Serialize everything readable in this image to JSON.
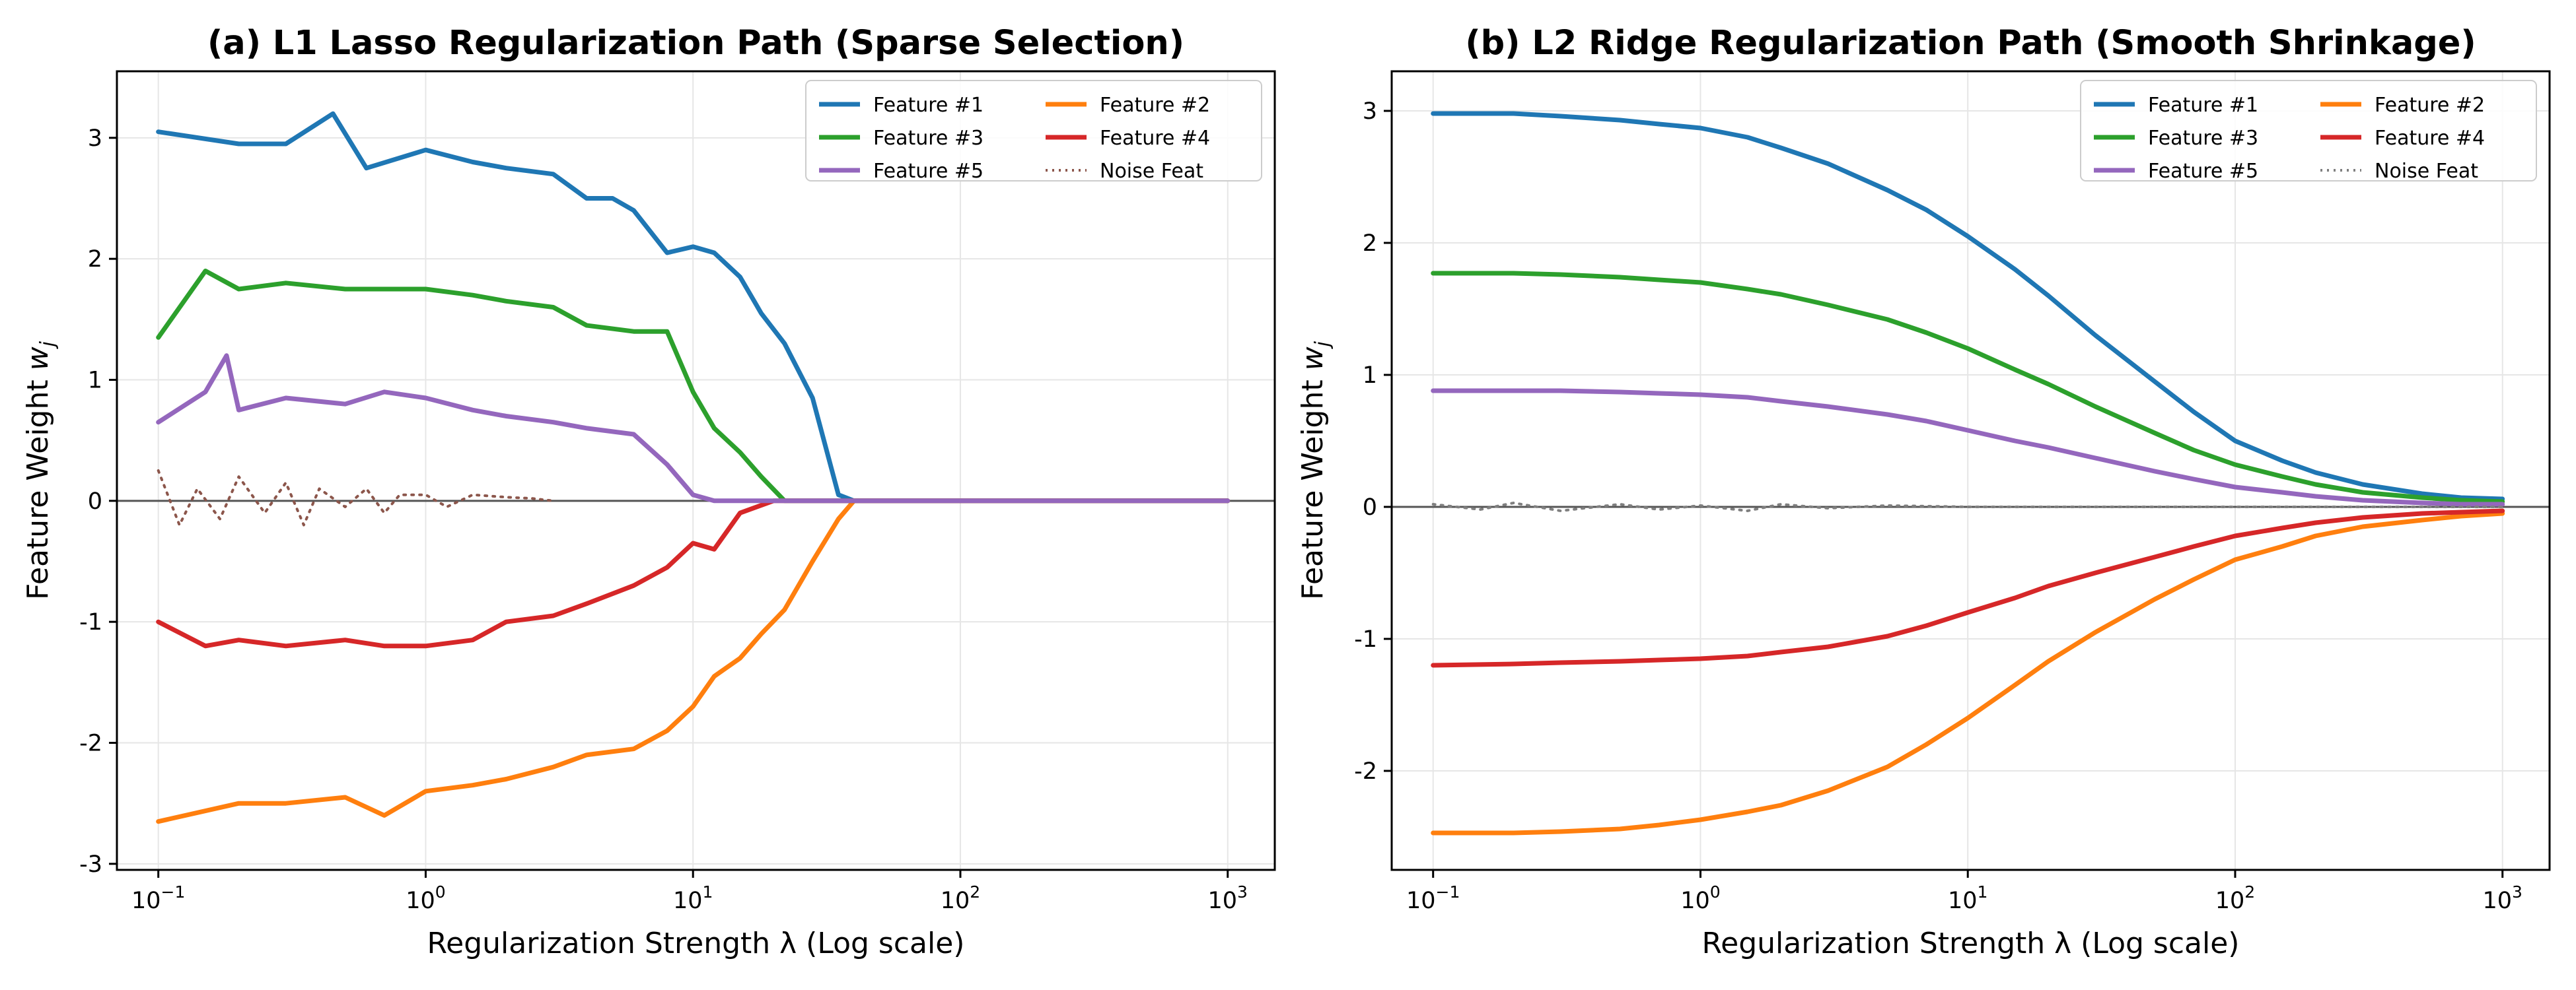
{
  "chart_data": [
    {
      "type": "line",
      "title": "(a) L1 Lasso Regularization Path (Sparse Selection)",
      "xlabel": "Regularization Strength λ (Log scale)",
      "ylabel": "Feature Weight w_j",
      "xscale": "log",
      "xlim": [
        0.07,
        1500
      ],
      "ylim": [
        -3.05,
        3.55
      ],
      "xticks": [
        0.1,
        1,
        10,
        100,
        1000
      ],
      "xtick_labels": [
        {
          "base": "10",
          "exp": "−1"
        },
        {
          "base": "10",
          "exp": "0"
        },
        {
          "base": "10",
          "exp": "1"
        },
        {
          "base": "10",
          "exp": "2"
        },
        {
          "base": "10",
          "exp": "3"
        }
      ],
      "yticks": [
        -3,
        -2,
        -1,
        0,
        1,
        2,
        3
      ],
      "ytick_labels": [
        "-3",
        "-2",
        "-1",
        "0",
        "1",
        "2",
        "3"
      ],
      "grid": true,
      "legend": "top-right, 2 columns",
      "zero_line": 0,
      "series": [
        {
          "name": "Feature #1",
          "color": "#1f77b4",
          "style": "solid",
          "x": [
            0.1,
            0.2,
            0.3,
            0.45,
            0.6,
            1,
            1.5,
            2,
            3,
            4,
            5,
            6,
            8,
            10,
            12,
            15,
            18,
            22,
            28,
            35,
            40,
            45,
            100,
            1000
          ],
          "y": [
            3.05,
            2.95,
            2.95,
            3.2,
            2.75,
            2.9,
            2.8,
            2.75,
            2.7,
            2.5,
            2.5,
            2.4,
            2.05,
            2.1,
            2.05,
            1.85,
            1.55,
            1.3,
            0.85,
            0.05,
            0.0,
            0.0,
            0.0,
            0.0
          ]
        },
        {
          "name": "Feature #2",
          "color": "#ff7f0e",
          "style": "solid",
          "x": [
            0.1,
            0.2,
            0.3,
            0.5,
            0.7,
            1,
            1.5,
            2,
            3,
            4,
            6,
            8,
            10,
            12,
            15,
            18,
            22,
            28,
            35,
            40,
            100,
            1000
          ],
          "y": [
            -2.65,
            -2.5,
            -2.5,
            -2.45,
            -2.6,
            -2.4,
            -2.35,
            -2.3,
            -2.2,
            -2.1,
            -2.05,
            -1.9,
            -1.7,
            -1.45,
            -1.3,
            -1.1,
            -0.9,
            -0.5,
            -0.15,
            0.0,
            0.0,
            0.0
          ]
        },
        {
          "name": "Feature #3",
          "color": "#2ca02c",
          "style": "solid",
          "x": [
            0.1,
            0.15,
            0.2,
            0.3,
            0.5,
            0.7,
            1,
            1.5,
            2,
            3,
            4,
            6,
            8,
            10,
            12,
            15,
            18,
            22,
            30,
            100,
            1000
          ],
          "y": [
            1.35,
            1.9,
            1.75,
            1.8,
            1.75,
            1.75,
            1.75,
            1.7,
            1.65,
            1.6,
            1.45,
            1.4,
            1.4,
            0.9,
            0.6,
            0.4,
            0.2,
            0.0,
            0.0,
            0.0,
            0.0
          ]
        },
        {
          "name": "Feature #4",
          "color": "#d62728",
          "style": "solid",
          "x": [
            0.1,
            0.15,
            0.2,
            0.3,
            0.5,
            0.7,
            1,
            1.5,
            2,
            3,
            4,
            6,
            8,
            10,
            12,
            15,
            20,
            30,
            100,
            1000
          ],
          "y": [
            -1.0,
            -1.2,
            -1.15,
            -1.2,
            -1.15,
            -1.2,
            -1.2,
            -1.15,
            -1.0,
            -0.95,
            -0.85,
            -0.7,
            -0.55,
            -0.35,
            -0.4,
            -0.1,
            0.0,
            0.0,
            0.0,
            0.0
          ]
        },
        {
          "name": "Feature #5",
          "color": "#9467bd",
          "style": "solid",
          "x": [
            0.1,
            0.15,
            0.18,
            0.2,
            0.3,
            0.5,
            0.7,
            1,
            1.5,
            2,
            3,
            4,
            6,
            8,
            10,
            12,
            15,
            20,
            100,
            1000
          ],
          "y": [
            0.65,
            0.9,
            1.2,
            0.75,
            0.85,
            0.8,
            0.9,
            0.85,
            0.75,
            0.7,
            0.65,
            0.6,
            0.55,
            0.3,
            0.05,
            0.0,
            0.0,
            0.0,
            0.0,
            0.0
          ]
        },
        {
          "name": "Noise Feat",
          "color": "#8c564b",
          "style": "dotted",
          "x": [
            0.1,
            0.12,
            0.14,
            0.17,
            0.2,
            0.25,
            0.3,
            0.35,
            0.4,
            0.5,
            0.6,
            0.7,
            0.8,
            1,
            1.2,
            1.5,
            2,
            2.5,
            3
          ],
          "y": [
            0.25,
            -0.2,
            0.1,
            -0.15,
            0.2,
            -0.1,
            0.15,
            -0.2,
            0.1,
            -0.05,
            0.1,
            -0.1,
            0.05,
            0.05,
            -0.05,
            0.05,
            0.03,
            0.02,
            0.0
          ]
        }
      ]
    },
    {
      "type": "line",
      "title": "(b) L2 Ridge Regularization Path (Smooth Shrinkage)",
      "xlabel": "Regularization Strength λ (Log scale)",
      "ylabel": "Feature Weight w_j",
      "xscale": "log",
      "xlim": [
        0.07,
        1500
      ],
      "ylim": [
        -2.75,
        3.3
      ],
      "xticks": [
        0.1,
        1,
        10,
        100,
        1000
      ],
      "xtick_labels": [
        {
          "base": "10",
          "exp": "−1"
        },
        {
          "base": "10",
          "exp": "0"
        },
        {
          "base": "10",
          "exp": "1"
        },
        {
          "base": "10",
          "exp": "2"
        },
        {
          "base": "10",
          "exp": "3"
        }
      ],
      "yticks": [
        -2,
        -1,
        0,
        1,
        2,
        3
      ],
      "ytick_labels": [
        "-2",
        "-1",
        "0",
        "1",
        "2",
        "3"
      ],
      "grid": true,
      "legend": "top-right, 2 columns",
      "zero_line": 0,
      "series": [
        {
          "name": "Feature #1",
          "color": "#1f77b4",
          "style": "solid",
          "x": [
            0.1,
            0.2,
            0.3,
            0.5,
            0.7,
            1,
            1.5,
            2,
            3,
            5,
            7,
            10,
            15,
            20,
            30,
            50,
            70,
            100,
            150,
            200,
            300,
            500,
            700,
            1000
          ],
          "y": [
            2.98,
            2.98,
            2.96,
            2.93,
            2.9,
            2.87,
            2.8,
            2.72,
            2.6,
            2.4,
            2.25,
            2.05,
            1.8,
            1.6,
            1.3,
            0.95,
            0.72,
            0.5,
            0.35,
            0.26,
            0.17,
            0.1,
            0.07,
            0.06
          ]
        },
        {
          "name": "Feature #2",
          "color": "#ff7f0e",
          "style": "solid",
          "x": [
            0.1,
            0.2,
            0.3,
            0.5,
            0.7,
            1,
            1.5,
            2,
            3,
            5,
            7,
            10,
            15,
            20,
            30,
            50,
            70,
            100,
            150,
            200,
            300,
            500,
            700,
            1000
          ],
          "y": [
            -2.47,
            -2.47,
            -2.46,
            -2.44,
            -2.41,
            -2.37,
            -2.31,
            -2.26,
            -2.15,
            -1.97,
            -1.8,
            -1.6,
            -1.35,
            -1.17,
            -0.95,
            -0.7,
            -0.55,
            -0.4,
            -0.3,
            -0.22,
            -0.15,
            -0.1,
            -0.07,
            -0.05
          ]
        },
        {
          "name": "Feature #3",
          "color": "#2ca02c",
          "style": "solid",
          "x": [
            0.1,
            0.2,
            0.3,
            0.5,
            0.7,
            1,
            1.5,
            2,
            3,
            5,
            7,
            10,
            15,
            20,
            30,
            50,
            70,
            100,
            150,
            200,
            300,
            500,
            700,
            1000
          ],
          "y": [
            1.77,
            1.77,
            1.76,
            1.74,
            1.72,
            1.7,
            1.65,
            1.61,
            1.53,
            1.42,
            1.32,
            1.2,
            1.04,
            0.93,
            0.76,
            0.56,
            0.43,
            0.32,
            0.23,
            0.17,
            0.11,
            0.07,
            0.05,
            0.04
          ]
        },
        {
          "name": "Feature #4",
          "color": "#d62728",
          "style": "solid",
          "x": [
            0.1,
            0.2,
            0.3,
            0.5,
            0.7,
            1,
            1.5,
            2,
            3,
            5,
            7,
            10,
            15,
            20,
            30,
            50,
            70,
            100,
            150,
            200,
            300,
            500,
            700,
            1000
          ],
          "y": [
            -1.2,
            -1.19,
            -1.18,
            -1.17,
            -1.16,
            -1.15,
            -1.13,
            -1.1,
            -1.06,
            -0.98,
            -0.9,
            -0.8,
            -0.69,
            -0.6,
            -0.5,
            -0.38,
            -0.3,
            -0.22,
            -0.16,
            -0.12,
            -0.08,
            -0.05,
            -0.04,
            -0.03
          ]
        },
        {
          "name": "Feature #5",
          "color": "#9467bd",
          "style": "solid",
          "x": [
            0.1,
            0.2,
            0.3,
            0.5,
            0.7,
            1,
            1.5,
            2,
            3,
            5,
            7,
            10,
            15,
            20,
            30,
            50,
            70,
            100,
            150,
            200,
            300,
            500,
            700,
            1000
          ],
          "y": [
            0.88,
            0.88,
            0.88,
            0.87,
            0.86,
            0.85,
            0.83,
            0.8,
            0.76,
            0.7,
            0.65,
            0.58,
            0.5,
            0.45,
            0.37,
            0.27,
            0.21,
            0.15,
            0.11,
            0.08,
            0.05,
            0.03,
            0.02,
            0.02
          ]
        },
        {
          "name": "Noise Feat",
          "color": "#7f7f7f",
          "style": "dotted",
          "x": [
            0.1,
            0.15,
            0.2,
            0.3,
            0.5,
            0.7,
            1,
            1.5,
            2,
            3,
            5,
            10,
            20,
            50,
            100,
            1000
          ],
          "y": [
            0.02,
            -0.02,
            0.03,
            -0.03,
            0.02,
            -0.02,
            0.01,
            -0.03,
            0.02,
            -0.01,
            0.01,
            0.0,
            0.0,
            0.0,
            0.0,
            0.0
          ]
        }
      ]
    }
  ]
}
